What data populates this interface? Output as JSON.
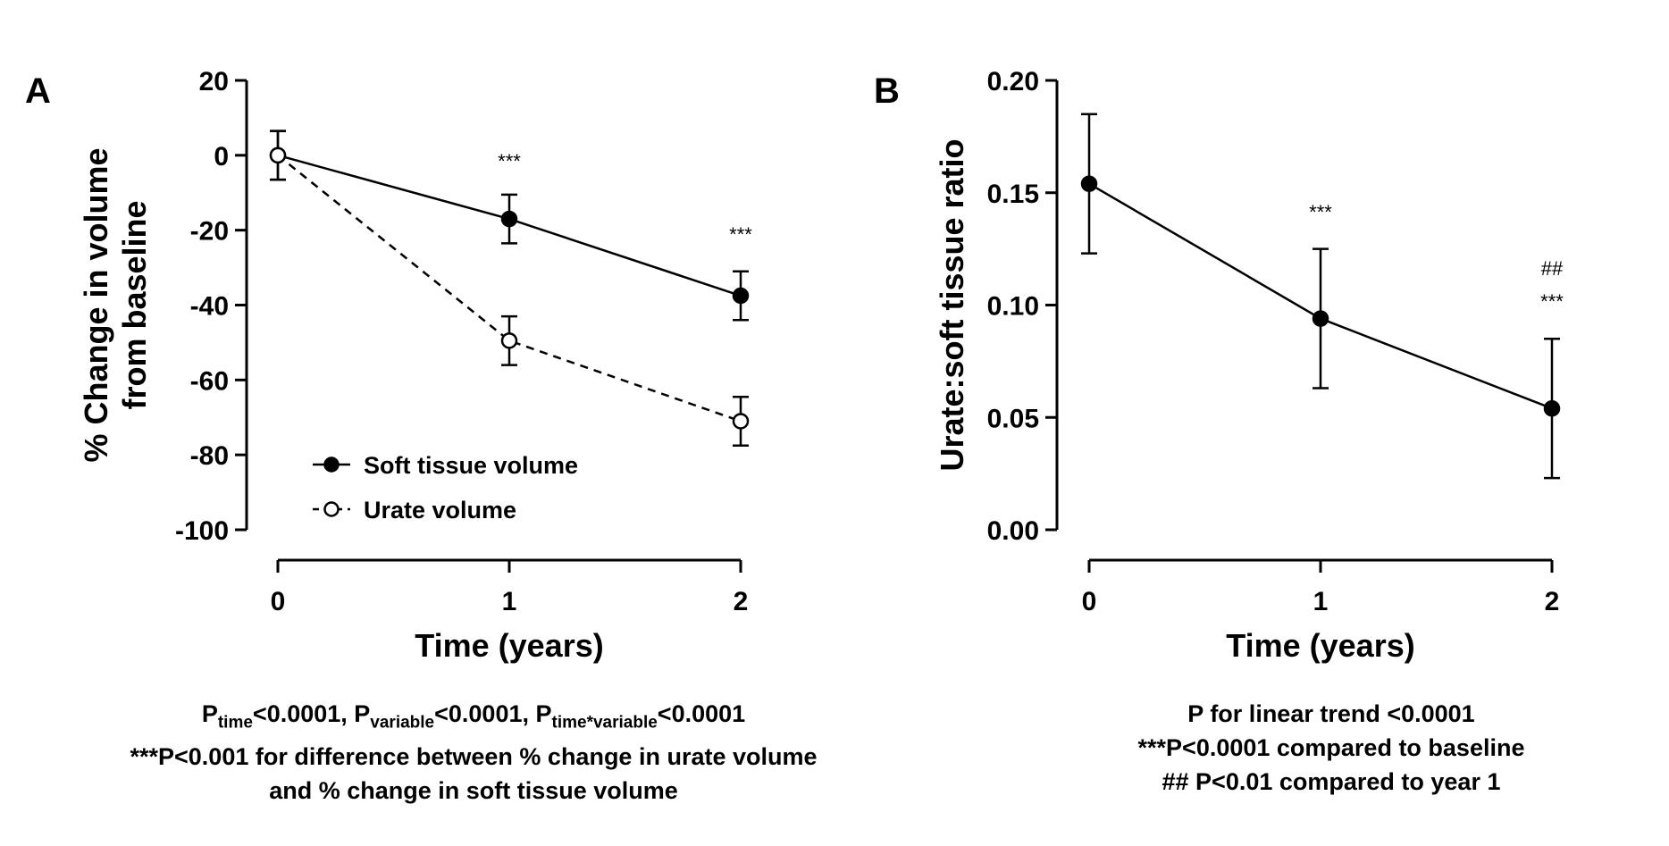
{
  "chart_data": [
    {
      "panel": "A",
      "type": "line",
      "ylabel_line1": "% Change in volume",
      "ylabel_line2": "from baseline",
      "xlabel": "Time (years)",
      "ylim": [
        -100,
        20
      ],
      "yticks": [
        20,
        0,
        -20,
        -40,
        -60,
        -80,
        -100
      ],
      "ytick_labels": [
        "20",
        "0",
        "-20",
        "-40",
        "-60",
        "-80",
        "-100"
      ],
      "x": [
        0,
        1,
        2
      ],
      "xtick_labels": [
        "0",
        "1",
        "2"
      ],
      "series": [
        {
          "name": "Soft tissue volume",
          "values": [
            0,
            -17,
            -37.5
          ],
          "err": [
            6.5,
            6.5,
            6.5
          ],
          "marker": "filled",
          "line": "solid"
        },
        {
          "name": "Urate volume",
          "values": [
            0,
            -49.5,
            -71
          ],
          "err": [
            6.5,
            6.5,
            6.5
          ],
          "marker": "open",
          "line": "dashed"
        }
      ],
      "annotations": [
        {
          "x": 1,
          "text": "***"
        },
        {
          "x": 2,
          "text": "***"
        }
      ],
      "legend": "bottom-left"
    },
    {
      "panel": "B",
      "type": "line",
      "ylabel": "Urate:soft tissue ratio",
      "xlabel": "Time (years)",
      "ylim": [
        0,
        0.2
      ],
      "yticks": [
        0.2,
        0.15,
        0.1,
        0.05,
        0
      ],
      "ytick_labels": [
        "0.20",
        "0.15",
        "0.10",
        "0.05",
        "0.00"
      ],
      "x": [
        0,
        1,
        2
      ],
      "xtick_labels": [
        "0",
        "1",
        "2"
      ],
      "series": [
        {
          "values": [
            0.154,
            0.094,
            0.054
          ],
          "err": [
            0.031,
            0.031,
            0.031
          ],
          "marker": "filled",
          "line": "solid"
        }
      ],
      "annotations": [
        {
          "x": 1,
          "text": "***"
        },
        {
          "x": 2,
          "text": "***"
        },
        {
          "x": 2,
          "text": "##"
        }
      ]
    }
  ],
  "footnotes": {
    "a": {
      "p1": "P",
      "s1": "time",
      "t1": "<0.0001, P",
      "s2": "variable",
      "t2": "<0.0001, P",
      "s3": "time*variable",
      "t3": "<0.0001",
      "line2": "***P<0.001 for difference between % change in urate volume",
      "line3": "and % change in soft tissue volume"
    },
    "b": {
      "line1": "P for linear trend <0.0001",
      "line2": "***P<0.0001 compared to baseline",
      "line3": "## P<0.01 compared to year 1"
    }
  }
}
